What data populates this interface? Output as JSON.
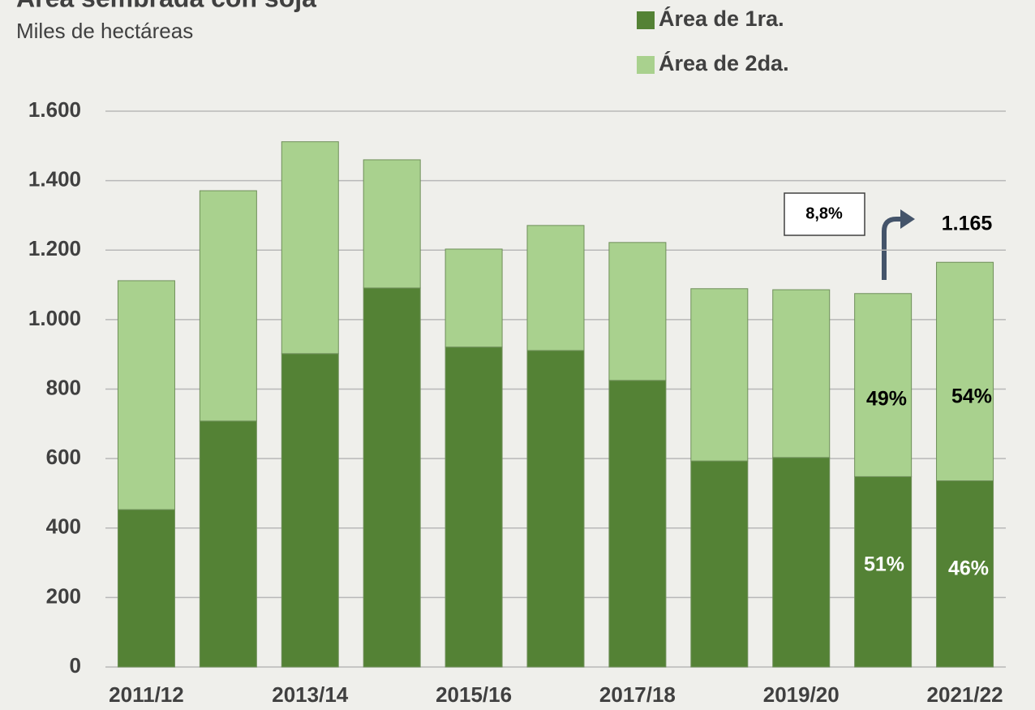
{
  "chart_data": {
    "type": "stacked_bar",
    "title": "Área sembrada con soja",
    "subtitle": "Miles de hectáreas",
    "categories": [
      "2011/12",
      null,
      "2013/14",
      null,
      "2015/16",
      null,
      "2017/18",
      null,
      "2019/20",
      null,
      "2021/22"
    ],
    "series": [
      {
        "name": "Área de 1ra.",
        "color": "#548235",
        "values": [
          453,
          708,
          902,
          1091,
          921,
          911,
          825,
          593,
          603,
          548,
          536
        ]
      },
      {
        "name": "Área de 2da.",
        "color": "#a9d18e",
        "values": [
          659,
          663,
          610,
          369,
          282,
          360,
          397,
          496,
          483,
          527,
          629
        ]
      }
    ],
    "ylim": [
      0,
      1600
    ],
    "yticks": [
      0,
      200,
      400,
      600,
      800,
      {
        "value": 1000,
        "label": "1.000"
      },
      {
        "value": 1200,
        "label": "1.200"
      },
      {
        "value": 1400,
        "label": "1.400"
      },
      {
        "value": 1600,
        "label": "1.600"
      }
    ],
    "grid": true,
    "legend": "top-right",
    "annotations": [
      {
        "text": "51%"
      },
      {
        "text": "49%"
      },
      {
        "text": "46%"
      },
      {
        "text": "54%"
      },
      {
        "text": "8,8%"
      },
      {
        "text": "1.165"
      }
    ]
  }
}
